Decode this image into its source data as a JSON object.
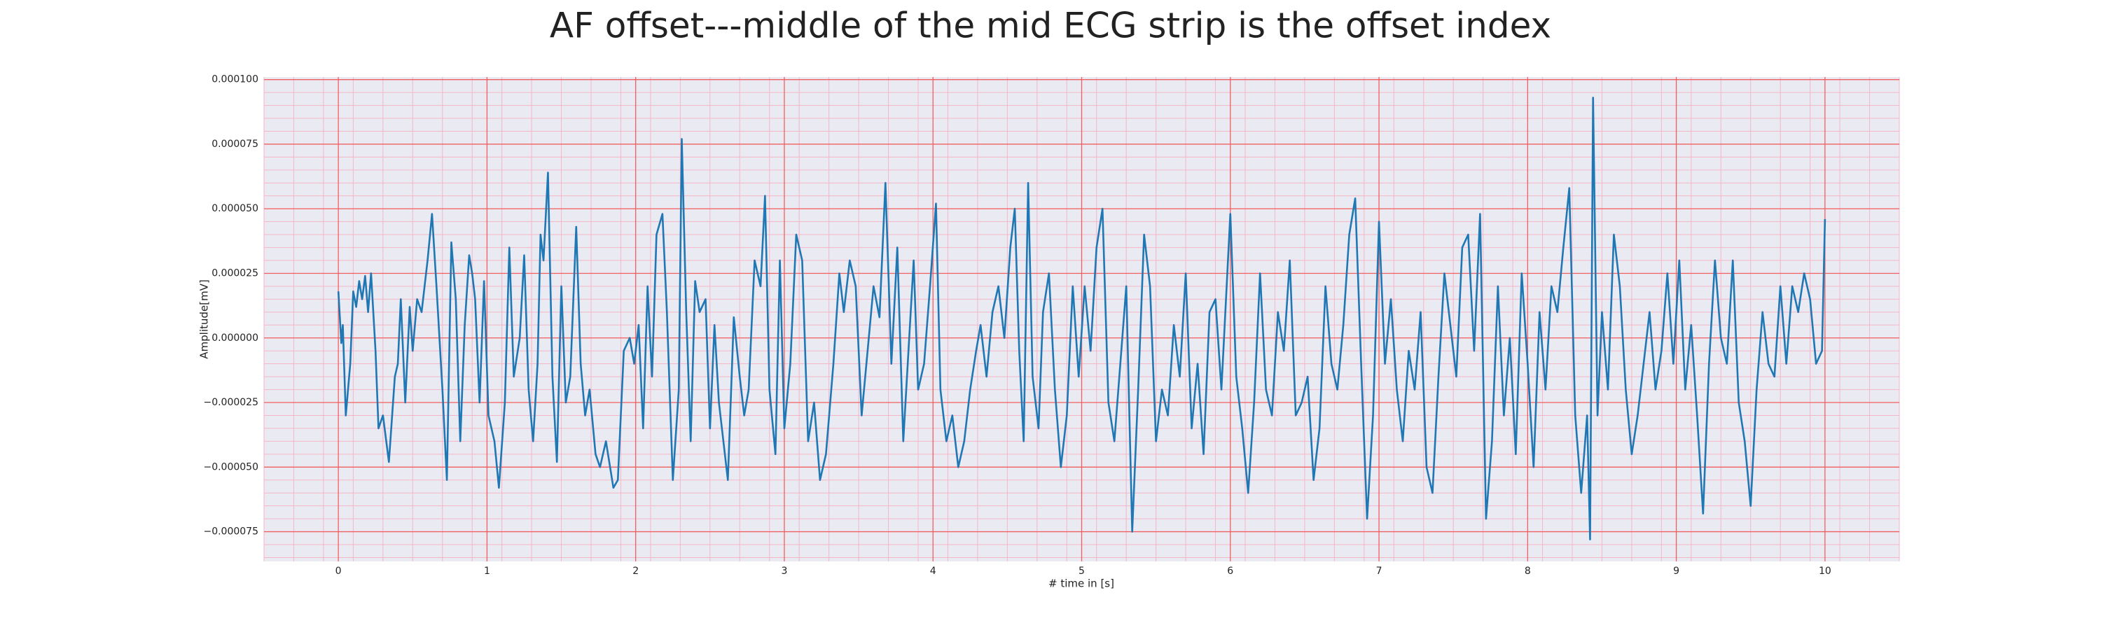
{
  "chart_data": {
    "type": "line",
    "title": "AF offset---middle of the mid ECG strip is the offset index",
    "x_label": "# time in [s]",
    "y_label": "Amplitude[mV]",
    "xlim": [
      -0.5,
      10.5
    ],
    "ylim": [
      -8.65e-05,
      0.000101
    ],
    "xticks": [
      0,
      1,
      2,
      3,
      4,
      5,
      6,
      7,
      8,
      9,
      10
    ],
    "yticks": [
      {
        "value": -7.5e-05,
        "label": "−0.000075"
      },
      {
        "value": -5e-05,
        "label": "−0.000050"
      },
      {
        "value": -2.5e-05,
        "label": "−0.000025"
      },
      {
        "value": 0,
        "label": "0.000000"
      },
      {
        "value": 2.5e-05,
        "label": "0.000025"
      },
      {
        "value": 5e-05,
        "label": "0.000050"
      },
      {
        "value": 7.5e-05,
        "label": "0.000075"
      },
      {
        "value": 0.0001,
        "label": "0.000100"
      }
    ],
    "grid": true,
    "minor_grid": true,
    "series": [
      {
        "color": "#1f77b4",
        "x": [
          0,
          0.02,
          0.03,
          0.05,
          0.08,
          0.1,
          0.12,
          0.14,
          0.16,
          0.18,
          0.2,
          0.22,
          0.25,
          0.27,
          0.3,
          0.34,
          0.38,
          0.4,
          0.42,
          0.45,
          0.48,
          0.5,
          0.53,
          0.56,
          0.6,
          0.63,
          0.66,
          0.7,
          0.73,
          0.76,
          0.79,
          0.82,
          0.85,
          0.88,
          0.9,
          0.92,
          0.95,
          0.98,
          1.01,
          1.05,
          1.08,
          1.12,
          1.15,
          1.18,
          1.22,
          1.25,
          1.28,
          1.31,
          1.34,
          1.36,
          1.38,
          1.41,
          1.44,
          1.47,
          1.5,
          1.53,
          1.56,
          1.6,
          1.63,
          1.66,
          1.69,
          1.73,
          1.76,
          1.8,
          1.85,
          1.88,
          1.92,
          1.96,
          1.99,
          2.02,
          2.05,
          2.08,
          2.11,
          2.14,
          2.18,
          2.21,
          2.25,
          2.29,
          2.31,
          2.34,
          2.37,
          2.4,
          2.43,
          2.47,
          2.5,
          2.53,
          2.56,
          2.59,
          2.62,
          2.66,
          2.7,
          2.73,
          2.76,
          2.8,
          2.84,
          2.87,
          2.9,
          2.94,
          2.97,
          3,
          3.04,
          3.08,
          3.12,
          3.16,
          3.2,
          3.24,
          3.28,
          3.33,
          3.37,
          3.4,
          3.44,
          3.48,
          3.52,
          3.56,
          3.6,
          3.64,
          3.68,
          3.72,
          3.76,
          3.8,
          3.83,
          3.87,
          3.9,
          3.94,
          3.98,
          4.02,
          4.05,
          4.09,
          4.13,
          4.17,
          4.21,
          4.25,
          4.29,
          4.32,
          4.36,
          4.4,
          4.44,
          4.48,
          4.52,
          4.55,
          4.58,
          4.61,
          4.64,
          4.67,
          4.71,
          4.74,
          4.78,
          4.82,
          4.86,
          4.9,
          4.94,
          4.98,
          5.02,
          5.06,
          5.1,
          5.14,
          5.18,
          5.22,
          5.26,
          5.3,
          5.34,
          5.38,
          5.42,
          5.46,
          5.5,
          5.54,
          5.58,
          5.62,
          5.66,
          5.7,
          5.74,
          5.78,
          5.82,
          5.86,
          5.9,
          5.94,
          6,
          6.04,
          6.08,
          6.12,
          6.16,
          6.2,
          6.24,
          6.28,
          6.32,
          6.36,
          6.4,
          6.44,
          6.48,
          6.52,
          6.56,
          6.6,
          6.64,
          6.68,
          6.72,
          6.76,
          6.8,
          6.84,
          6.88,
          6.92,
          6.96,
          7,
          7.04,
          7.08,
          7.12,
          7.16,
          7.2,
          7.24,
          7.28,
          7.32,
          7.36,
          7.4,
          7.44,
          7.48,
          7.52,
          7.56,
          7.6,
          7.64,
          7.68,
          7.72,
          7.76,
          7.8,
          7.84,
          7.88,
          7.92,
          7.96,
          8,
          8.04,
          8.08,
          8.12,
          8.16,
          8.2,
          8.24,
          8.28,
          8.32,
          8.36,
          8.4,
          8.42,
          8.44,
          8.47,
          8.5,
          8.54,
          8.58,
          8.62,
          8.66,
          8.7,
          8.74,
          8.78,
          8.82,
          8.86,
          8.9,
          8.94,
          8.98,
          9.02,
          9.06,
          9.1,
          9.14,
          9.18,
          9.22,
          9.26,
          9.3,
          9.34,
          9.38,
          9.42,
          9.46,
          9.5,
          9.54,
          9.58,
          9.62,
          9.66,
          9.7,
          9.74,
          9.78,
          9.82,
          9.86,
          9.9,
          9.94,
          9.98,
          10
        ],
        "values": [
          1.8e-05,
          -2e-06,
          5e-06,
          -3e-05,
          -1e-05,
          1.8e-05,
          1.2e-05,
          2.2e-05,
          1.5e-05,
          2.4e-05,
          1e-05,
          2.5e-05,
          -5e-06,
          -3.5e-05,
          -3e-05,
          -4.8e-05,
          -1.5e-05,
          -1e-05,
          1.5e-05,
          -2.5e-05,
          1.2e-05,
          -5e-06,
          1.5e-05,
          1e-05,
          3e-05,
          4.8e-05,
          2e-05,
          -2e-05,
          -5.5e-05,
          3.7e-05,
          1.5e-05,
          -4e-05,
          5e-06,
          3.2e-05,
          2.5e-05,
          1.5e-05,
          -2.5e-05,
          2.2e-05,
          -3e-05,
          -4e-05,
          -5.8e-05,
          -2.5e-05,
          3.5e-05,
          -1.5e-05,
          0,
          3.2e-05,
          -2e-05,
          -4e-05,
          -1e-05,
          4e-05,
          3e-05,
          6.4e-05,
          -1.5e-05,
          -4.8e-05,
          2e-05,
          -2.5e-05,
          -1.5e-05,
          4.3e-05,
          -1e-05,
          -3e-05,
          -2e-05,
          -4.5e-05,
          -5e-05,
          -4e-05,
          -5.8e-05,
          -5.5e-05,
          -5e-06,
          0,
          -1e-05,
          5e-06,
          -3.5e-05,
          2e-05,
          -1.5e-05,
          4e-05,
          4.8e-05,
          1e-05,
          -5.5e-05,
          -2e-05,
          7.7e-05,
          1e-05,
          -4e-05,
          2.2e-05,
          1e-05,
          1.5e-05,
          -3.5e-05,
          5e-06,
          -2.5e-05,
          -4e-05,
          -5.5e-05,
          8e-06,
          -1.5e-05,
          -3e-05,
          -2e-05,
          3e-05,
          2e-05,
          5.5e-05,
          -2e-05,
          -4.5e-05,
          3e-05,
          -3.5e-05,
          -1e-05,
          4e-05,
          3e-05,
          -4e-05,
          -2.5e-05,
          -5.5e-05,
          -4.5e-05,
          -1e-05,
          2.5e-05,
          1e-05,
          3e-05,
          2e-05,
          -3e-05,
          -5e-06,
          2e-05,
          8e-06,
          6e-05,
          -1e-05,
          3.5e-05,
          -4e-05,
          -1e-05,
          3e-05,
          -2e-05,
          -1e-05,
          2e-05,
          5.2e-05,
          -2e-05,
          -4e-05,
          -3e-05,
          -5e-05,
          -4e-05,
          -2e-05,
          -5e-06,
          5e-06,
          -1.5e-05,
          1e-05,
          2e-05,
          0,
          3.5e-05,
          5e-05,
          -5e-06,
          -4e-05,
          6e-05,
          -1.5e-05,
          -3.5e-05,
          1e-05,
          2.5e-05,
          -2e-05,
          -5e-05,
          -3e-05,
          2e-05,
          -1.5e-05,
          2e-05,
          -5e-06,
          3.5e-05,
          5e-05,
          -2.5e-05,
          -4e-05,
          -1e-05,
          2e-05,
          -7.5e-05,
          -2e-05,
          4e-05,
          2e-05,
          -4e-05,
          -2e-05,
          -3e-05,
          5e-06,
          -1.5e-05,
          2.5e-05,
          -3.5e-05,
          -1e-05,
          -4.5e-05,
          1e-05,
          1.5e-05,
          -2e-05,
          4.8e-05,
          -1.5e-05,
          -3.5e-05,
          -6e-05,
          -2.5e-05,
          2.5e-05,
          -2e-05,
          -3e-05,
          1e-05,
          -5e-06,
          3e-05,
          -3e-05,
          -2.5e-05,
          -1.5e-05,
          -5.5e-05,
          -3.5e-05,
          2e-05,
          -1e-05,
          -2e-05,
          5e-06,
          4e-05,
          5.4e-05,
          -1e-05,
          -7e-05,
          -3e-05,
          4.5e-05,
          -1e-05,
          1.5e-05,
          -2e-05,
          -4e-05,
          -5e-06,
          -2e-05,
          1e-05,
          -5e-05,
          -6e-05,
          -1.5e-05,
          2.5e-05,
          5e-06,
          -1.5e-05,
          3.5e-05,
          4e-05,
          -5e-06,
          4.8e-05,
          -7e-05,
          -4e-05,
          2e-05,
          -3e-05,
          0,
          -4.5e-05,
          2.5e-05,
          -1e-05,
          -5e-05,
          1e-05,
          -2e-05,
          2e-05,
          1e-05,
          3.5e-05,
          5.8e-05,
          -3e-05,
          -6e-05,
          -3e-05,
          -7.8e-05,
          9.3e-05,
          -3e-05,
          1e-05,
          -2e-05,
          4e-05,
          2e-05,
          -2e-05,
          -4.5e-05,
          -3e-05,
          -1e-05,
          1e-05,
          -2e-05,
          -5e-06,
          2.5e-05,
          -1e-05,
          3e-05,
          -2e-05,
          5e-06,
          -3e-05,
          -6.8e-05,
          -1e-05,
          3e-05,
          0,
          -1e-05,
          3e-05,
          -2.5e-05,
          -4e-05,
          -6.5e-05,
          -2e-05,
          1e-05,
          -1e-05,
          -1.5e-05,
          2e-05,
          -1e-05,
          2e-05,
          1e-05,
          2.5e-05,
          1.5e-05,
          -1e-05,
          -5e-06,
          4.6e-05
        ]
      }
    ]
  }
}
